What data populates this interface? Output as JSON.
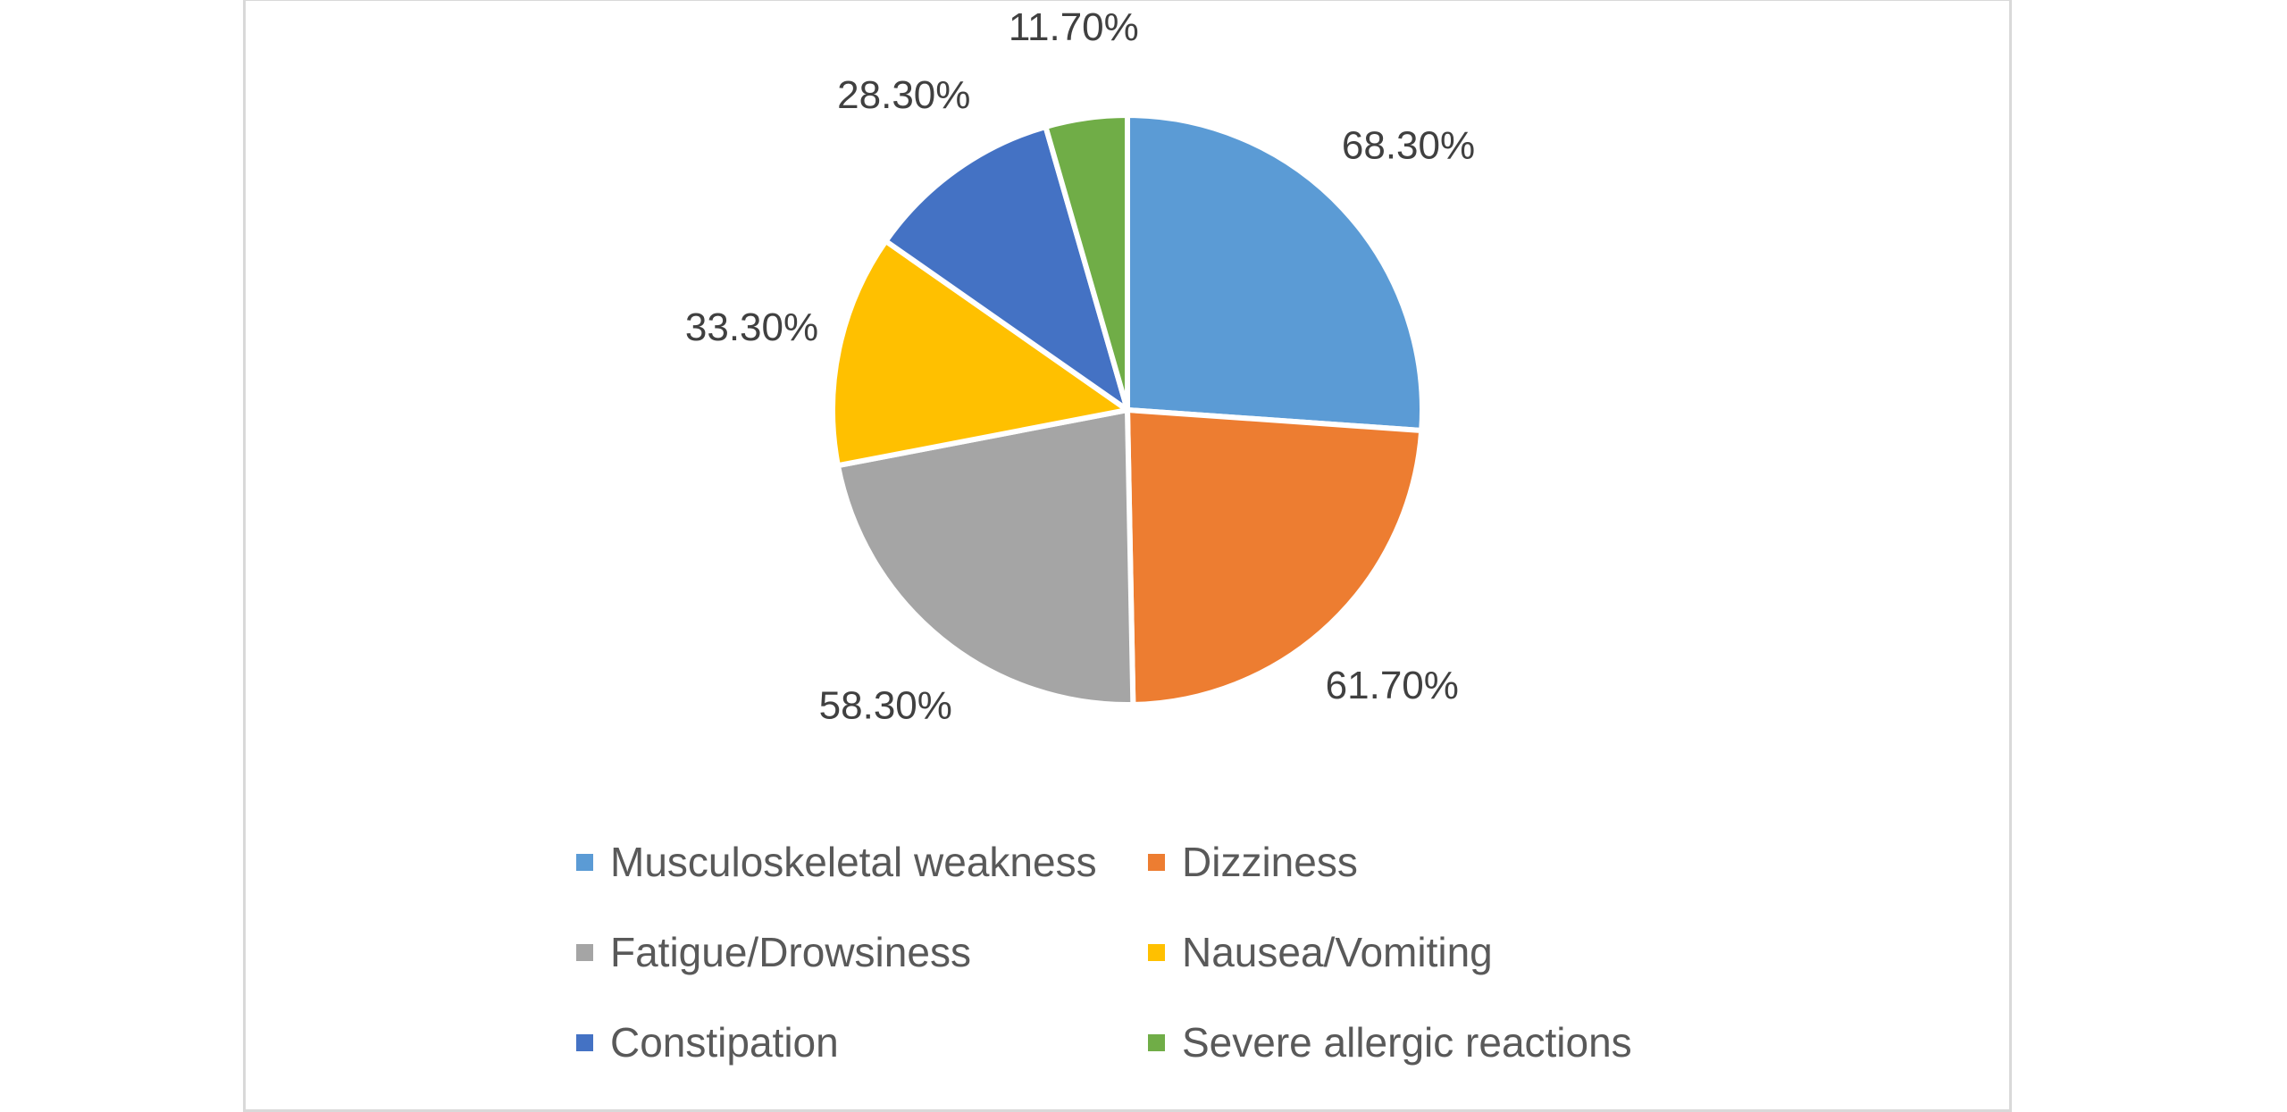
{
  "chart_data": {
    "type": "pie",
    "title": "",
    "categories": [
      "Musculoskeletal weakness",
      "Dizziness",
      "Fatigue/Drowsiness",
      "Nausea/Vomiting",
      "Constipation",
      "Severe allergic reactions"
    ],
    "values": [
      68.3,
      61.7,
      58.3,
      33.3,
      28.3,
      11.7
    ],
    "labels": [
      "68.30%",
      "61.70%",
      "58.30%",
      "33.30%",
      "28.30%",
      "11.70%"
    ],
    "colors": [
      "#5b9bd5",
      "#ed7d31",
      "#a5a5a5",
      "#ffc000",
      "#4472c4",
      "#70ad47"
    ],
    "legend_position": "bottom"
  }
}
